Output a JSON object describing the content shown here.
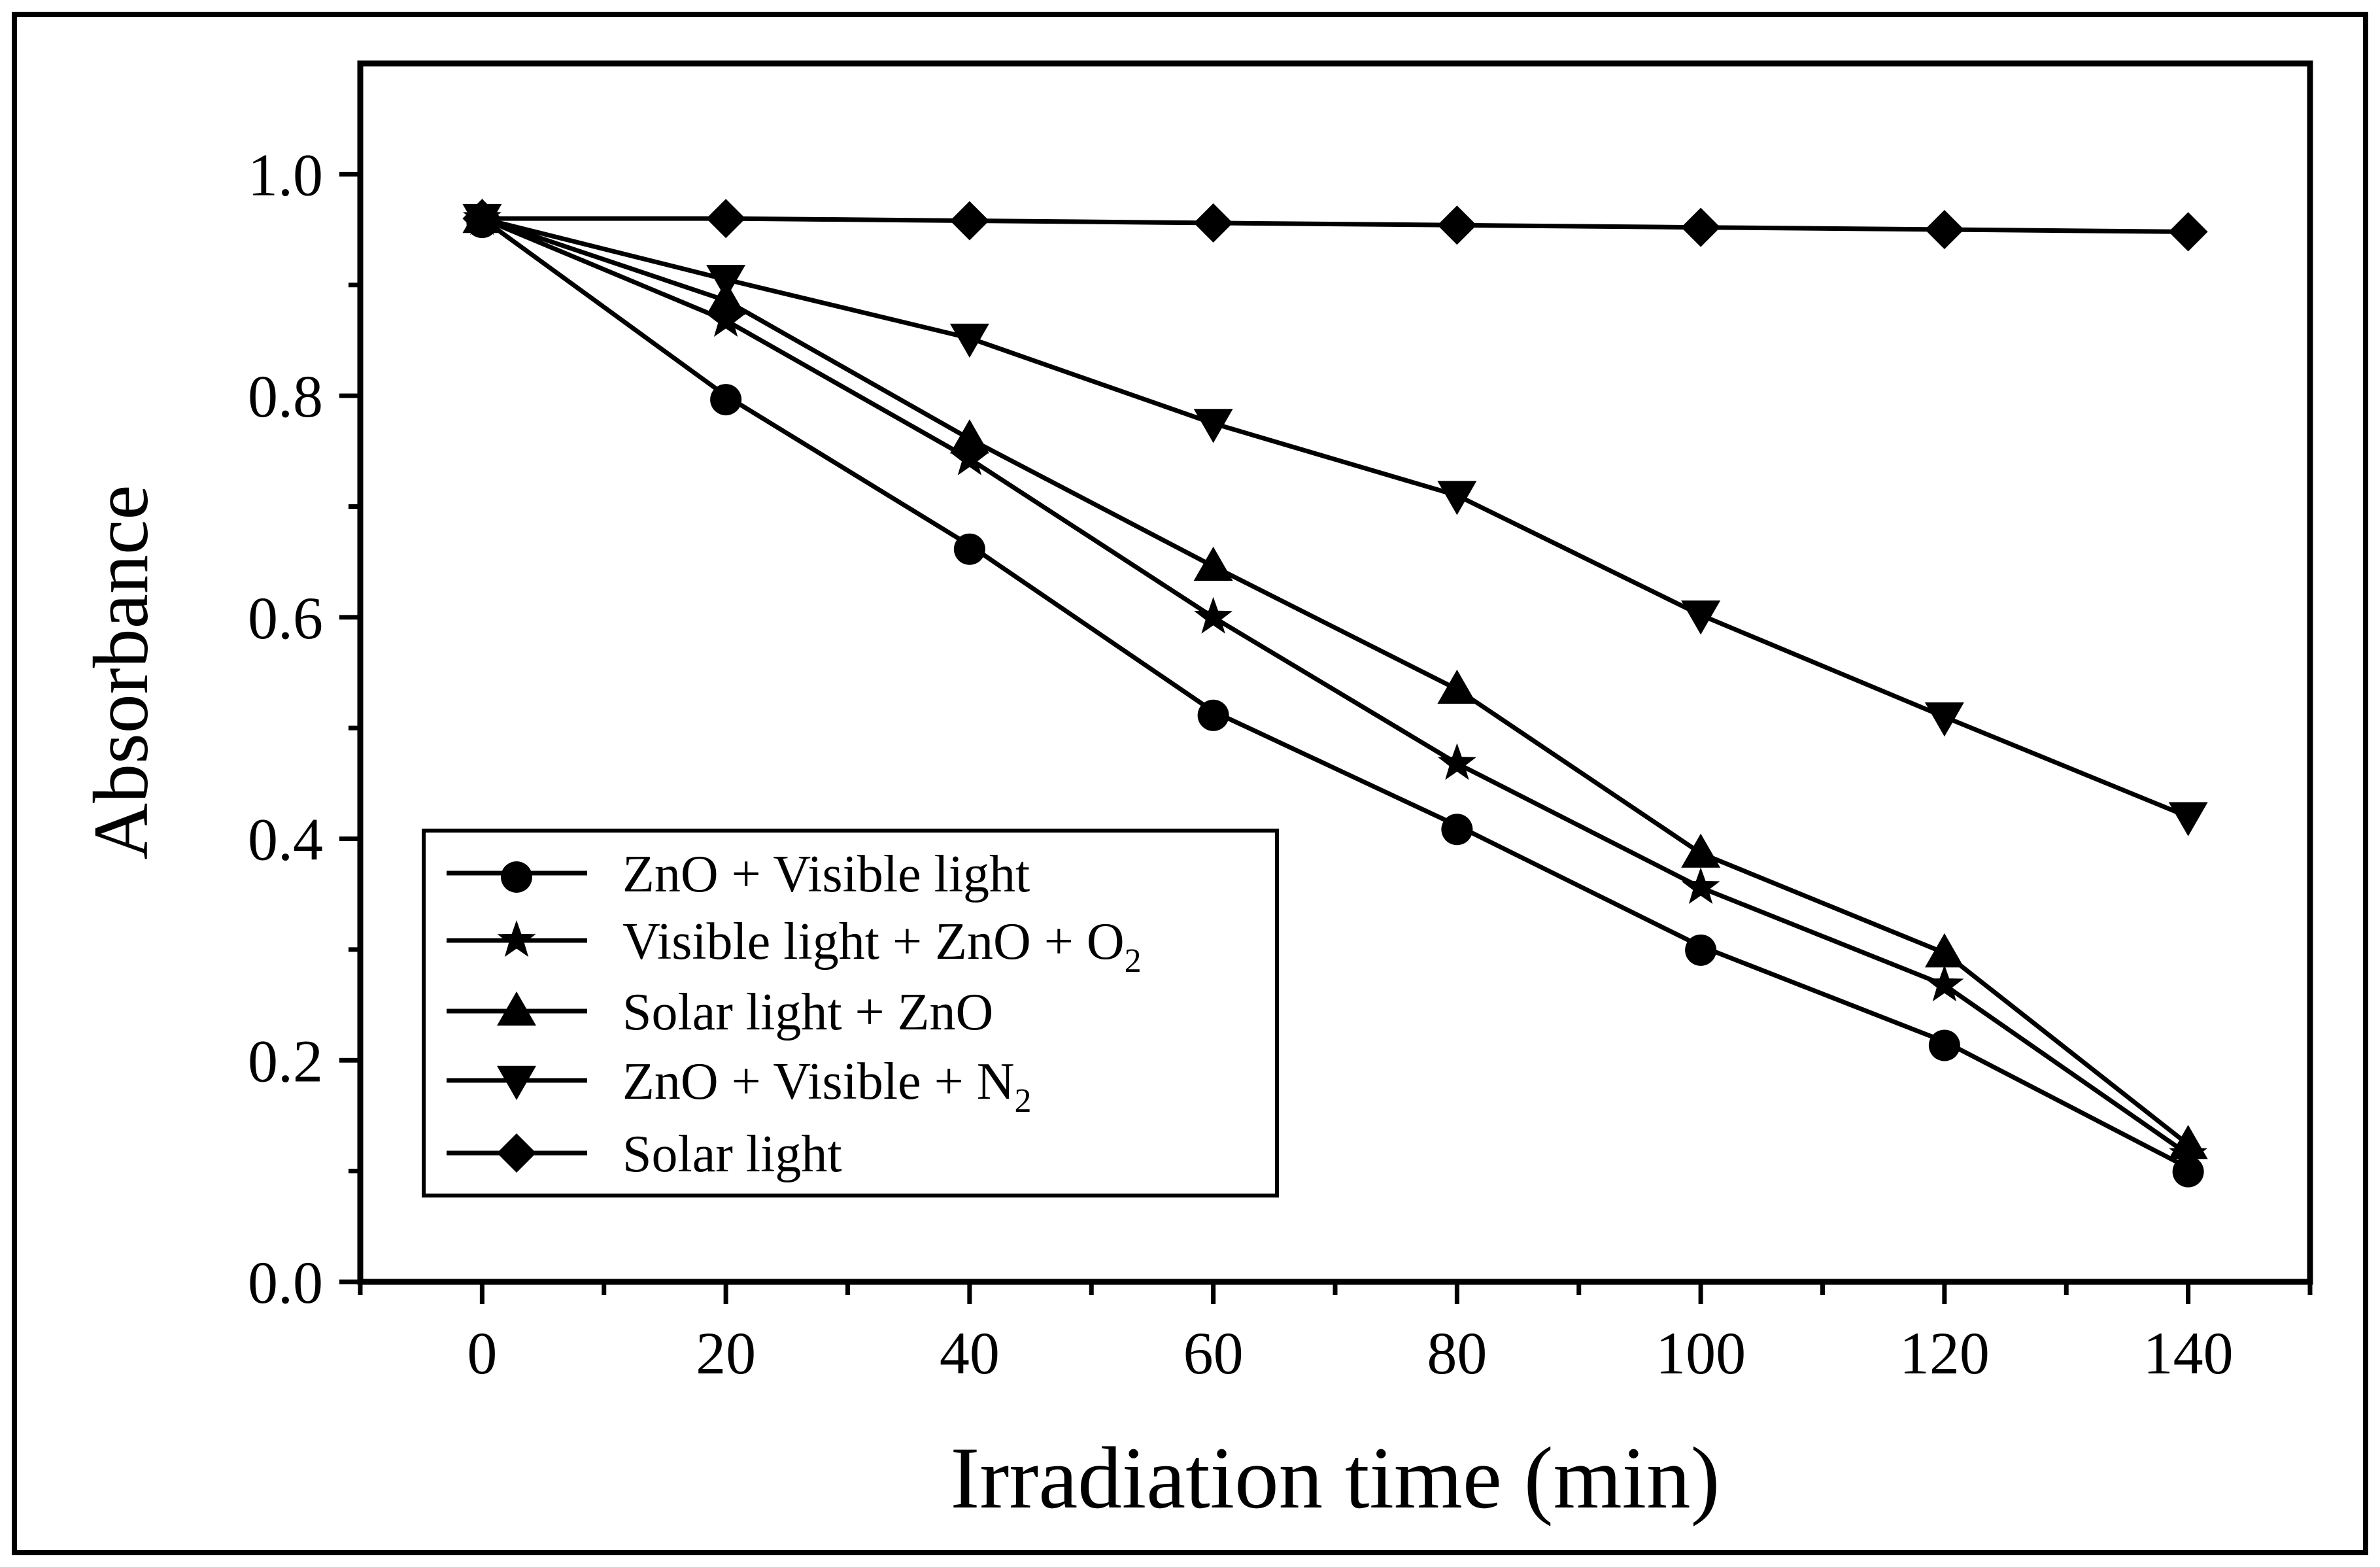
{
  "chart_data": {
    "type": "line",
    "title": "",
    "xlabel": "Irradiation time (min)",
    "ylabel": "Absorbance",
    "xlim": [
      -10,
      150
    ],
    "ylim": [
      0.0,
      1.1
    ],
    "x_ticks": [
      0,
      20,
      40,
      60,
      80,
      100,
      120,
      140
    ],
    "x_tick_labels": [
      "0",
      "20",
      "40",
      "60",
      "80",
      "100",
      "120",
      "140"
    ],
    "y_ticks": [
      0.0,
      0.2,
      0.4,
      0.6,
      0.8,
      1.0
    ],
    "y_tick_labels": [
      "0.0",
      "0.2",
      "0.4",
      "0.6",
      "0.8",
      "1.0"
    ],
    "grid": false,
    "legend_position": "bottom-left",
    "x": [
      0,
      20,
      40,
      60,
      80,
      100,
      120,
      140
    ],
    "series": [
      {
        "name": "ZnO + Visible light",
        "legend_text": "ZnO + Visible light",
        "legend_sub": "",
        "marker": "circle",
        "values": [
          0.96,
          0.8,
          0.665,
          0.515,
          0.412,
          0.303,
          0.217,
          0.103
        ]
      },
      {
        "name": "Visible light + ZnO + O2",
        "legend_text": "Visible light + ZnO + O",
        "legend_sub": "2",
        "marker": "star",
        "values": [
          0.96,
          0.868,
          0.743,
          0.6,
          0.468,
          0.356,
          0.268,
          0.115
        ]
      },
      {
        "name": "Solar light + ZnO",
        "legend_text": "Solar light + ZnO",
        "legend_sub": "",
        "marker": "triangle-up",
        "values": [
          0.96,
          0.886,
          0.761,
          0.646,
          0.535,
          0.387,
          0.297,
          0.124
        ]
      },
      {
        "name": "ZnO + Visible + N2",
        "legend_text": "ZnO + Visible + N",
        "legend_sub": "2",
        "marker": "triangle-down",
        "values": [
          0.96,
          0.905,
          0.852,
          0.775,
          0.71,
          0.602,
          0.51,
          0.42
        ]
      },
      {
        "name": "Solar light",
        "legend_text": "Solar light",
        "legend_sub": "",
        "marker": "diamond",
        "values": [
          0.96,
          0.96,
          0.958,
          0.956,
          0.954,
          0.952,
          0.95,
          0.948
        ]
      }
    ]
  }
}
